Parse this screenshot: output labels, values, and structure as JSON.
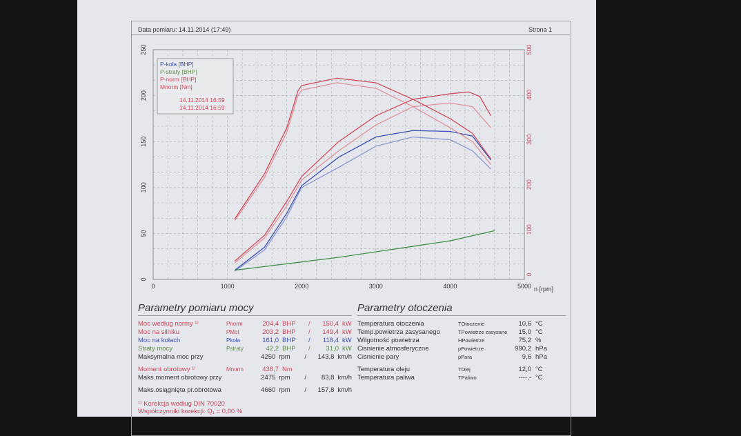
{
  "header": {
    "date_label": "Data pomiaru: 14.11.2014 (17:49)",
    "page_label": "Strona 1"
  },
  "colors": {
    "kola": "#3a4fb0",
    "straty": "#3f8f4a",
    "norm": "#d04a5c",
    "norm_light": "#e0909a",
    "kola_light": "#8a98d0"
  },
  "chart_data": {
    "type": "line",
    "xlabel": "n [rpm]",
    "ylabel_left": "BHP",
    "ylabel_right": "Nm",
    "xlim": [
      0,
      5000
    ],
    "ylim_left": [
      0,
      250
    ],
    "ylim_right": [
      0,
      500
    ],
    "x_ticks": [
      "0",
      "1000",
      "2000",
      "3000",
      "4000",
      "5000"
    ],
    "y_ticks_left": [
      "0",
      "50",
      "100",
      "150",
      "200",
      "250"
    ],
    "y_ticks_right": [
      "0",
      "100",
      "200",
      "300",
      "400",
      "500"
    ],
    "legend": [
      "P-koła [BHP]",
      "P-straty [BHP]",
      "P-norm [BHP]",
      "Mnorm [Nm]"
    ],
    "runs": [
      "14.11.2014 16:59",
      "14.11.2014 16:59"
    ],
    "legend_position": "top-left",
    "series": [
      {
        "name": "P-koła [BHP]",
        "axis": "left",
        "color": "kola",
        "points": [
          [
            1100,
            10
          ],
          [
            1500,
            35
          ],
          [
            1800,
            72
          ],
          [
            2000,
            102
          ],
          [
            2500,
            133
          ],
          [
            3000,
            155
          ],
          [
            3500,
            162
          ],
          [
            4000,
            161
          ],
          [
            4300,
            156
          ],
          [
            4550,
            130
          ]
        ]
      },
      {
        "name": "P-koła [BHP] run2",
        "axis": "left",
        "color": "kola_light",
        "points": [
          [
            1100,
            9
          ],
          [
            1500,
            32
          ],
          [
            1800,
            68
          ],
          [
            2000,
            100
          ],
          [
            2500,
            122
          ],
          [
            3000,
            145
          ],
          [
            3500,
            155
          ],
          [
            4000,
            152
          ],
          [
            4300,
            140
          ],
          [
            4550,
            120
          ]
        ]
      },
      {
        "name": "P-straty [BHP]",
        "axis": "left",
        "color": "straty",
        "points": [
          [
            1100,
            10
          ],
          [
            1500,
            14
          ],
          [
            2000,
            19
          ],
          [
            2500,
            24
          ],
          [
            3000,
            30
          ],
          [
            3500,
            36
          ],
          [
            4000,
            42
          ],
          [
            4600,
            53
          ]
        ]
      },
      {
        "name": "P-norm [BHP]",
        "axis": "left",
        "color": "norm",
        "points": [
          [
            1100,
            20
          ],
          [
            1500,
            48
          ],
          [
            1800,
            85
          ],
          [
            2000,
            112
          ],
          [
            2500,
            150
          ],
          [
            3000,
            178
          ],
          [
            3500,
            196
          ],
          [
            4000,
            202
          ],
          [
            4250,
            204
          ],
          [
            4400,
            199
          ],
          [
            4550,
            178
          ]
        ]
      },
      {
        "name": "P-norm [BHP] run2",
        "axis": "left",
        "color": "norm_light",
        "points": [
          [
            1100,
            18
          ],
          [
            1500,
            45
          ],
          [
            1800,
            80
          ],
          [
            2000,
            108
          ],
          [
            2500,
            140
          ],
          [
            3000,
            168
          ],
          [
            3500,
            188
          ],
          [
            4000,
            192
          ],
          [
            4300,
            188
          ],
          [
            4550,
            165
          ]
        ]
      },
      {
        "name": "Mnorm [Nm]",
        "axis": "right",
        "color": "norm",
        "points": [
          [
            1100,
            132
          ],
          [
            1500,
            230
          ],
          [
            1800,
            330
          ],
          [
            1950,
            410
          ],
          [
            2000,
            422
          ],
          [
            2475,
            438
          ],
          [
            3000,
            428
          ],
          [
            3500,
            392
          ],
          [
            4000,
            350
          ],
          [
            4300,
            318
          ],
          [
            4550,
            262
          ]
        ]
      },
      {
        "name": "Mnorm [Nm] run2",
        "axis": "right",
        "color": "norm_light",
        "points": [
          [
            1100,
            128
          ],
          [
            1500,
            222
          ],
          [
            1800,
            320
          ],
          [
            1950,
            400
          ],
          [
            2000,
            412
          ],
          [
            2475,
            428
          ],
          [
            3000,
            416
          ],
          [
            3500,
            376
          ],
          [
            4000,
            330
          ],
          [
            4300,
            300
          ],
          [
            4550,
            250
          ]
        ]
      }
    ]
  },
  "power": {
    "title": "Parametry pomiaru mocy",
    "rows": [
      {
        "label": "Moc według normy ¹⁾",
        "sym": "Pnorm",
        "v1": "204,4",
        "u1": "BHP",
        "v2": "150,4",
        "u2": "kW",
        "color": "#c8485a"
      },
      {
        "label": "Moc na silniku",
        "sym": "PMot",
        "v1": "203,2",
        "u1": "BHP",
        "v2": "149,4",
        "u2": "kW",
        "color": "#c8485a"
      },
      {
        "label": "Moc na kołach",
        "sym": "Pkoła",
        "v1": "161,0",
        "u1": "BHP",
        "v2": "118,4",
        "u2": "kW",
        "color": "#3a4fb0"
      },
      {
        "label": "Straty mocy",
        "sym": "Pstraty",
        "v1": "42,2",
        "u1": "BHP",
        "v2": "31,0",
        "u2": "kW",
        "color": "#5c8a4a"
      },
      {
        "label": "Maksymalna moc przy",
        "sym": "",
        "v1": "4250",
        "u1": "rpm",
        "v2": "143,8",
        "u2": "km/h",
        "color": "#333"
      },
      {
        "label": "Moment obrotowy ¹⁾",
        "sym": "Mnorm",
        "v1": "438,7",
        "u1": "Nm",
        "v2": "",
        "u2": "",
        "color": "#c8485a"
      },
      {
        "label": "Maks.moment obrotowy przy",
        "sym": "",
        "v1": "2475",
        "u1": "rpm",
        "v2": "83,8",
        "u2": "km/h",
        "color": "#333"
      },
      {
        "label": "Maks.osiągnięta pr.obrotowa",
        "sym": "",
        "v1": "4660",
        "u1": "rpm",
        "v2": "157,8",
        "u2": "km/h",
        "color": "#333"
      }
    ],
    "note1": "¹⁾ Korekcja według DIN 70020",
    "note2": "Współczynniki korekcji: Q₁ = 0,00 %"
  },
  "env": {
    "title": "Parametry otoczenia",
    "rows": [
      {
        "label": "Temperatura otoczenia",
        "sym": "TOtoczenie",
        "v": "10,6",
        "u": "°C"
      },
      {
        "label": "Temp.powietrza zasysanego",
        "sym": "TPowietrze zasysane",
        "v": "15,0",
        "u": "°C"
      },
      {
        "label": "Wilgotność powietrza",
        "sym": "HPowietrze",
        "v": "75,2",
        "u": "%"
      },
      {
        "label": "Cisnienie atmosferyczne",
        "sym": "pPowietrze",
        "v": "990,2",
        "u": "hPa"
      },
      {
        "label": "Cisnienie pary",
        "sym": "pPara",
        "v": "9,6",
        "u": "hPa"
      },
      {
        "label": "Temperatura oleju",
        "sym": "TOlej",
        "v": "12,0",
        "u": "°C"
      },
      {
        "label": "Temperatura paliwa",
        "sym": "TPaliwo",
        "v": "----,-",
        "u": "°C"
      }
    ]
  }
}
